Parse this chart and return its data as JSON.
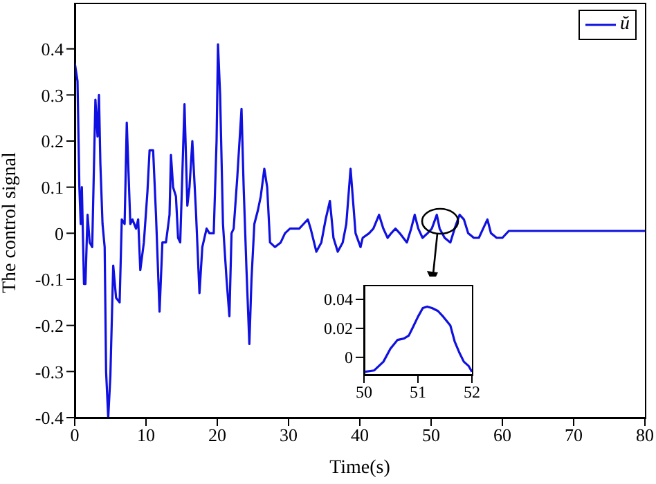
{
  "chart_data": [
    {
      "type": "line",
      "xlabel": "Time(s)",
      "ylabel": "The control signal",
      "xlim": [
        0,
        80
      ],
      "xticks": [
        0,
        10,
        20,
        30,
        40,
        50,
        60,
        70,
        80
      ],
      "ylim": [
        -0.4,
        0.5
      ],
      "yticks": [
        -0.4,
        -0.3,
        -0.2,
        -0.1,
        0,
        0.1,
        0.2,
        0.3,
        0.4
      ],
      "legend": "top right",
      "grid": false,
      "line_style": "solid",
      "marker": "none",
      "series": [
        {
          "name": "ŭ",
          "color": "#1010e0",
          "x": [
            0,
            0.39,
            0.65,
            0.84,
            1.0,
            1.3,
            1.5,
            1.8,
            2.1,
            2.45,
            2.9,
            3.2,
            3.4,
            3.6,
            3.9,
            4.2,
            4.4,
            4.7,
            5.0,
            5.4,
            5.8,
            6.3,
            6.6,
            7.0,
            7.3,
            7.8,
            8.1,
            8.6,
            8.9,
            9.2,
            9.7,
            10.2,
            10.5,
            11.0,
            11.4,
            11.9,
            12.3,
            12.8,
            13.3,
            13.5,
            13.8,
            14.2,
            14.5,
            14.8,
            15.4,
            15.8,
            16.1,
            16.5,
            17.0,
            17.5,
            17.9,
            18.5,
            18.9,
            19.5,
            19.9,
            20.1,
            20.4,
            20.8,
            21.3,
            21.7,
            22.0,
            22.3,
            22.8,
            23.0,
            23.4,
            23.7,
            24.1,
            24.5,
            24.8,
            25.2,
            25.7,
            26.1,
            26.6,
            27.0,
            27.4,
            28.1,
            28.9,
            29.5,
            30.2,
            30.7,
            31.5,
            32.1,
            32.7,
            33.1,
            33.9,
            34.6,
            35.2,
            35.8,
            36.3,
            36.9,
            37.6,
            38.1,
            38.7,
            39.4,
            40.1,
            40.4,
            41.3,
            41.9,
            42.7,
            43.3,
            43.9,
            44.4,
            45.0,
            45.6,
            46.1,
            46.6,
            47.2,
            47.7,
            48.2,
            48.8,
            49.5,
            50.1,
            50.8,
            51.2,
            51.9,
            52.7,
            53.3,
            54.0,
            54.6,
            55.2,
            56.0,
            56.7,
            57.3,
            57.9,
            58.4,
            59.2,
            60.0,
            60.9,
            61.9,
            70,
            80
          ],
          "values": [
            0.37,
            0.33,
            0.1,
            0.02,
            0.1,
            -0.11,
            -0.11,
            0.04,
            -0.02,
            -0.03,
            0.29,
            0.21,
            0.3,
            0.15,
            0.02,
            -0.03,
            -0.3,
            -0.4,
            -0.31,
            -0.07,
            -0.14,
            -0.15,
            0.03,
            0.02,
            0.24,
            0.02,
            0.03,
            0.01,
            0.03,
            -0.08,
            -0.02,
            0.09,
            0.18,
            0.18,
            0.04,
            -0.17,
            -0.02,
            -0.02,
            0.04,
            0.17,
            0.1,
            0.08,
            -0.01,
            -0.02,
            0.28,
            0.06,
            0.1,
            0.2,
            0.05,
            -0.13,
            -0.03,
            0.01,
            0.0,
            0.0,
            0.2,
            0.41,
            0.3,
            0.02,
            -0.1,
            -0.18,
            0.0,
            0.01,
            0.12,
            0.17,
            0.27,
            0.1,
            -0.08,
            -0.24,
            -0.1,
            0.02,
            0.05,
            0.08,
            0.14,
            0.1,
            -0.02,
            -0.03,
            -0.02,
            0.0,
            0.01,
            0.01,
            0.01,
            0.02,
            0.03,
            0.01,
            -0.04,
            -0.02,
            0.03,
            0.07,
            -0.01,
            -0.04,
            -0.02,
            0.02,
            0.14,
            0.0,
            -0.03,
            -0.01,
            0.0,
            0.01,
            0.04,
            0.01,
            -0.01,
            0.0,
            0.01,
            0.0,
            -0.01,
            -0.02,
            0.01,
            0.04,
            0.01,
            -0.01,
            0.0,
            0.01,
            0.04,
            0.01,
            -0.01,
            -0.02,
            0.01,
            0.04,
            0.03,
            0.0,
            -0.01,
            -0.01,
            0.01,
            0.03,
            0.0,
            -0.01,
            -0.01,
            0.005,
            0.005,
            0.005,
            0.005
          ]
        }
      ]
    },
    {
      "type": "line",
      "xlim": [
        50,
        52
      ],
      "xticks": [
        50,
        51,
        52
      ],
      "ylim": [
        -0.012,
        0.05
      ],
      "yticks": [
        0,
        0.02,
        0.04
      ],
      "grid": false,
      "line_style": "solid",
      "marker": "none",
      "series": [
        {
          "color": "#1010e0",
          "x": [
            50,
            50.19,
            50.36,
            50.49,
            50.62,
            50.74,
            50.83,
            50.91,
            51.0,
            51.09,
            51.17,
            51.26,
            51.37,
            51.47,
            51.6,
            51.68,
            51.77,
            51.85,
            51.94,
            52
          ],
          "values": [
            -0.01,
            -0.009,
            -0.003,
            0.006,
            0.012,
            0.013,
            0.015,
            0.021,
            0.028,
            0.034,
            0.035,
            0.034,
            0.032,
            0.028,
            0.022,
            0.011,
            0.003,
            -0.003,
            -0.006,
            -0.01
          ]
        }
      ]
    }
  ]
}
